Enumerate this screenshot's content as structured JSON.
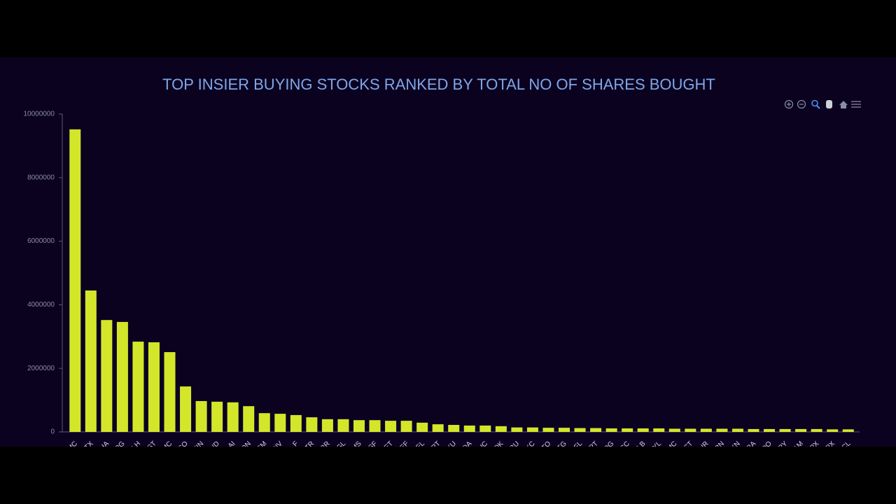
{
  "chart_data": {
    "type": "bar",
    "title": "TOP INSIER BUYING STOCKS RANKED BY TOTAL NO OF SHARES BOUGHT",
    "categories": [
      "MC",
      "ITX",
      "HA",
      "PG",
      "LH",
      "ST",
      "MC",
      "SO",
      "EIN",
      "ND",
      "AI",
      "ON",
      "SM",
      "OIV",
      "F",
      "TR",
      "BR",
      "GL",
      "MS",
      "SF",
      "ET",
      "EF",
      "EL",
      "PT",
      "KU",
      "DA",
      "HC",
      "DK",
      "BU",
      "KC",
      "TO",
      "TG",
      "EFL",
      "RT",
      "OG",
      "CC",
      "LB",
      "YL",
      "MC",
      "CT",
      "HR",
      "BN",
      "KN",
      "RA",
      "DO",
      "RY",
      "AM",
      "PX",
      "PX",
      "CL"
    ],
    "values": [
      9520000,
      4450000,
      3520000,
      3460000,
      2840000,
      2820000,
      2510000,
      1430000,
      970000,
      950000,
      930000,
      810000,
      590000,
      570000,
      530000,
      460000,
      400000,
      400000,
      370000,
      370000,
      350000,
      350000,
      290000,
      240000,
      220000,
      200000,
      200000,
      180000,
      140000,
      140000,
      130000,
      130000,
      120000,
      120000,
      110000,
      110000,
      110000,
      110000,
      100000,
      100000,
      100000,
      100000,
      100000,
      90000,
      90000,
      90000,
      90000,
      90000,
      80000,
      80000
    ],
    "color": "#d4e62a",
    "ylim": [
      0,
      10000000
    ],
    "yticks": [
      0,
      2000000,
      4000000,
      6000000,
      8000000,
      10000000
    ]
  }
}
